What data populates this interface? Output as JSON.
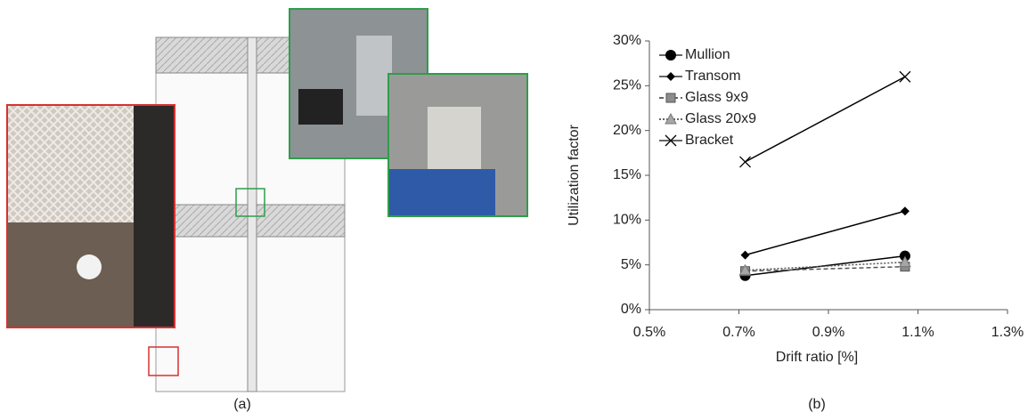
{
  "panel_labels": [
    "(a)",
    "(b)"
  ],
  "chart_data": {
    "type": "line",
    "xlabel": "Drift ratio [%]",
    "ylabel": "Utilization factor",
    "x": [
      0.714,
      1.071
    ],
    "xlim": [
      0.5,
      1.3
    ],
    "xticks": [
      {
        "value": 0.5,
        "label": "0.5%"
      },
      {
        "value": 0.7,
        "label": "0.7%"
      },
      {
        "value": 0.9,
        "label": "0.9%"
      },
      {
        "value": 1.1,
        "label": "1.1%"
      },
      {
        "value": 1.3,
        "label": "1.3%"
      }
    ],
    "ylim": [
      0,
      30
    ],
    "yticks": [
      {
        "value": 0,
        "label": "0%"
      },
      {
        "value": 5,
        "label": "5%"
      },
      {
        "value": 10,
        "label": "10%"
      },
      {
        "value": 15,
        "label": "15%"
      },
      {
        "value": 20,
        "label": "20%"
      },
      {
        "value": 25,
        "label": "25%"
      },
      {
        "value": 30,
        "label": "30%"
      }
    ],
    "grid": false,
    "legend": "upper left",
    "series": [
      {
        "name": "Mullion",
        "color": "#000000",
        "marker": "circle",
        "dash": "solid",
        "values": [
          3.8,
          6.0
        ]
      },
      {
        "name": "Transom",
        "color": "#000000",
        "marker": "diamond",
        "dash": "solid",
        "values": [
          6.1,
          11.0
        ]
      },
      {
        "name": "Glass 9x9",
        "color": "#8c8c8c",
        "marker": "square",
        "dash": "dashed",
        "values": [
          4.3,
          4.8
        ]
      },
      {
        "name": "Glass 20x9",
        "color": "#a6a6a6",
        "marker": "triangle",
        "dash": "dotted",
        "values": [
          4.4,
          5.3
        ]
      },
      {
        "name": "Bracket",
        "color": "#000000",
        "marker": "x",
        "dash": "solid",
        "values": [
          16.5,
          26.0
        ]
      }
    ]
  }
}
